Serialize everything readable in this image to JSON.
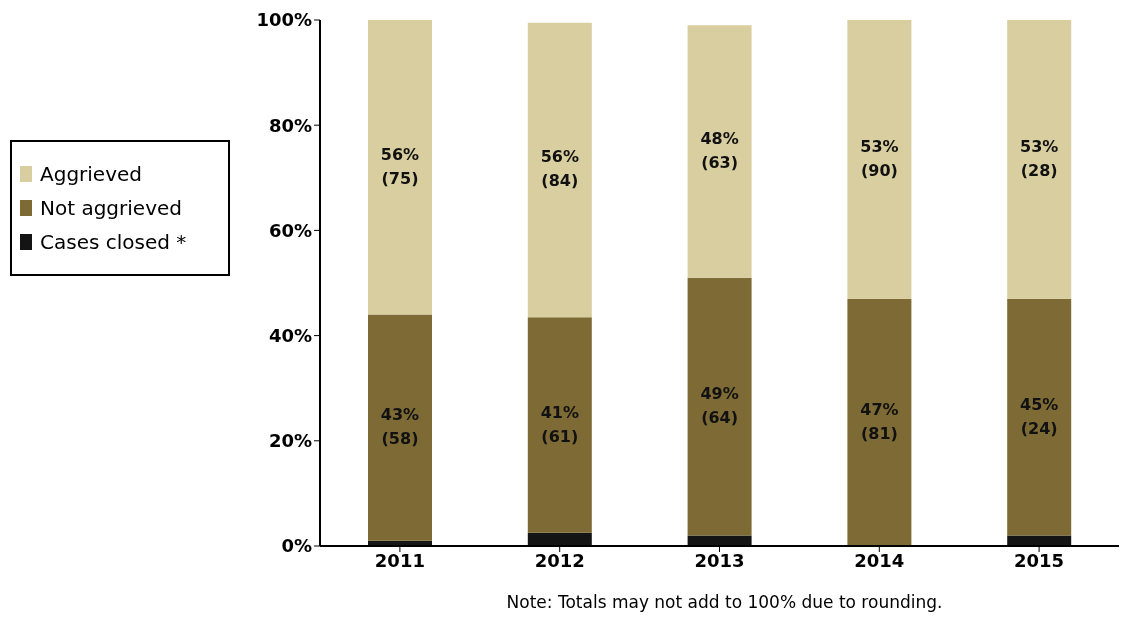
{
  "chart_data": {
    "type": "bar",
    "stacked": true,
    "categories": [
      "2011",
      "2012",
      "2013",
      "2014",
      "2015"
    ],
    "series": [
      {
        "name": "Cases closed *",
        "color": "#141414",
        "values": [
          1,
          2.5,
          2,
          0,
          2
        ]
      },
      {
        "name": "Not aggrieved",
        "color": "#7d6a35",
        "values": [
          43,
          41,
          49,
          47,
          45
        ],
        "value_labels": [
          "43%\n(58)",
          "41%\n(61)",
          "49%\n(64)",
          "47%\n(81)",
          "45%\n(24)"
        ]
      },
      {
        "name": "Aggrieved",
        "color": "#d8cea0",
        "values": [
          56,
          56,
          48,
          53,
          53
        ],
        "value_labels": [
          "56%\n(75)",
          "56%\n(84)",
          "48%\n(63)",
          "53%\n(90)",
          "53%\n(28)"
        ]
      }
    ],
    "ylim": [
      0,
      100
    ],
    "yticks": [
      {
        "value": 0,
        "label": "0%"
      },
      {
        "value": 20,
        "label": "20%"
      },
      {
        "value": 40,
        "label": "40%"
      },
      {
        "value": 60,
        "label": "60%"
      },
      {
        "value": 80,
        "label": "80%"
      },
      {
        "value": 100,
        "label": "100%"
      }
    ],
    "grid": false,
    "legend": "left",
    "annotations": [
      "Note: Totals may not add to 100% due to rounding."
    ]
  }
}
